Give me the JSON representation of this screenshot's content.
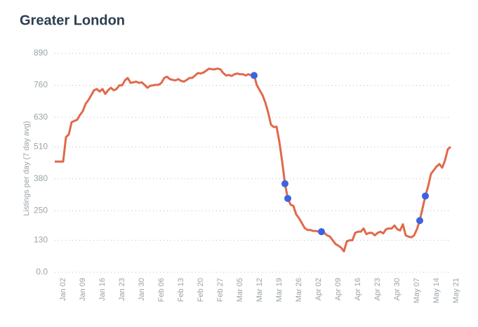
{
  "chart_data": {
    "type": "line",
    "title": "Greater London",
    "ylabel": "Listings per day (7 day avg)",
    "categories": [
      null,
      null,
      null,
      "Jan 02",
      null,
      null,
      null,
      null,
      null,
      null,
      "Jan 09",
      null,
      null,
      null,
      null,
      null,
      null,
      "Jan 16",
      null,
      null,
      null,
      null,
      null,
      null,
      "Jan 23",
      null,
      null,
      null,
      null,
      null,
      null,
      "Jan 30",
      null,
      null,
      null,
      null,
      null,
      null,
      "Feb 06",
      null,
      null,
      null,
      null,
      null,
      null,
      "Feb 13",
      null,
      null,
      null,
      null,
      null,
      null,
      "Feb 20",
      null,
      null,
      null,
      null,
      null,
      null,
      "Feb 27",
      null,
      null,
      null,
      null,
      null,
      null,
      "Mar 05",
      null,
      null,
      null,
      null,
      null,
      null,
      "Mar 12",
      null,
      null,
      null,
      null,
      null,
      null,
      "Mar 19",
      null,
      null,
      null,
      null,
      null,
      null,
      "Mar 26",
      null,
      null,
      null,
      null,
      null,
      null,
      "Apr 02",
      null,
      null,
      null,
      null,
      null,
      null,
      "Apr 09",
      null,
      null,
      null,
      null,
      null,
      null,
      "Apr 16",
      null,
      null,
      null,
      null,
      null,
      null,
      "Apr 23",
      null,
      null,
      null,
      null,
      null,
      null,
      "Apr 30",
      null,
      null,
      null,
      null,
      null,
      null,
      "May 07",
      null,
      null,
      null,
      null,
      null,
      null,
      "May 14",
      null,
      null,
      null,
      null,
      null,
      null,
      "May 21"
    ],
    "series": [
      {
        "color": "#e0694b",
        "style": "line",
        "values": [
          450,
          450,
          450,
          450,
          550,
          560,
          610,
          615,
          620,
          640,
          655,
          685,
          700,
          720,
          740,
          745,
          735,
          745,
          725,
          740,
          750,
          740,
          745,
          760,
          760,
          780,
          790,
          770,
          772,
          775,
          770,
          772,
          762,
          750,
          758,
          760,
          762,
          762,
          770,
          790,
          795,
          785,
          782,
          780,
          785,
          778,
          775,
          782,
          790,
          790,
          800,
          810,
          808,
          812,
          820,
          828,
          825,
          825,
          828,
          825,
          810,
          800,
          802,
          798,
          805,
          808,
          805,
          805,
          800,
          805,
          800,
          800,
          760,
          740,
          720,
          690,
          650,
          600,
          590,
          592,
          530,
          450,
          360,
          300,
          275,
          270,
          235,
          220,
          200,
          180,
          172,
          172,
          168,
          168,
          165,
          165,
          160,
          150,
          145,
          130,
          115,
          108,
          100,
          85,
          125,
          130,
          130,
          160,
          165,
          165,
          178,
          155,
          160,
          160,
          150,
          160,
          165,
          158,
          175,
          178,
          178,
          190,
          175,
          170,
          195,
          150,
          145,
          142,
          150,
          175,
          210,
          260,
          310,
          350,
          400,
          415,
          430,
          440,
          425,
          455,
          500,
          510,
          null,
          null
        ]
      },
      {
        "color": "#3d63e0",
        "style": "points",
        "values": [
          null,
          null,
          null,
          null,
          null,
          null,
          null,
          null,
          null,
          null,
          null,
          null,
          null,
          null,
          null,
          null,
          null,
          null,
          null,
          null,
          null,
          null,
          null,
          null,
          null,
          null,
          null,
          null,
          null,
          null,
          null,
          null,
          null,
          null,
          null,
          null,
          null,
          null,
          null,
          null,
          null,
          null,
          null,
          null,
          null,
          null,
          null,
          null,
          null,
          null,
          null,
          null,
          null,
          null,
          null,
          null,
          null,
          null,
          null,
          null,
          null,
          null,
          null,
          null,
          null,
          null,
          null,
          null,
          null,
          null,
          null,
          800,
          null,
          null,
          null,
          null,
          null,
          null,
          null,
          null,
          null,
          null,
          360,
          300,
          null,
          null,
          null,
          null,
          null,
          null,
          null,
          null,
          null,
          null,
          null,
          165,
          null,
          null,
          null,
          null,
          null,
          null,
          null,
          null,
          null,
          null,
          null,
          null,
          null,
          null,
          null,
          null,
          null,
          null,
          null,
          null,
          null,
          null,
          null,
          null,
          null,
          null,
          null,
          null,
          null,
          null,
          null,
          null,
          null,
          null,
          210,
          null,
          310,
          null,
          null,
          null,
          null,
          null,
          null,
          null,
          null,
          null,
          null,
          null
        ]
      }
    ],
    "ylim": [
      0,
      890
    ],
    "yticks": [
      {
        "value": 0,
        "label": "0.0"
      },
      130,
      250,
      380,
      510,
      630,
      760,
      890
    ],
    "grid": true
  }
}
